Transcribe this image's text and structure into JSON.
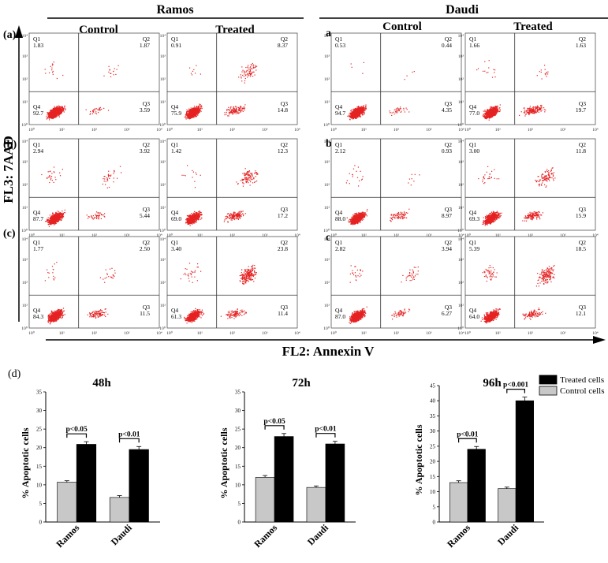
{
  "headers": {
    "ramos": "Ramos",
    "daudi": "Daudi",
    "control": "Control",
    "treated": "Treated"
  },
  "axes": {
    "y_label": "FL3: 7AAD",
    "x_label": "FL2: Annexin V"
  },
  "row_labels": {
    "left": [
      "(a)",
      "(b)",
      "(c)"
    ],
    "right": [
      "a",
      "b",
      "c"
    ],
    "panel_d": "(d)"
  },
  "scatter_panels": [
    {
      "cell_line": "Ramos",
      "condition": "Control",
      "row": "a",
      "Q1": "1.83",
      "Q2": "1.87",
      "Q3": "3.59",
      "Q4": "92.7"
    },
    {
      "cell_line": "Ramos",
      "condition": "Treated",
      "row": "a",
      "Q1": "0.91",
      "Q2": "8.37",
      "Q3": "14.8",
      "Q4": "75.9"
    },
    {
      "cell_line": "Daudi",
      "condition": "Control",
      "row": "a",
      "Q1": "0.53",
      "Q2": "0.44",
      "Q3": "4.35",
      "Q4": "94.7"
    },
    {
      "cell_line": "Daudi",
      "condition": "Treated",
      "row": "a",
      "Q1": "1.66",
      "Q2": "1.63",
      "Q3": "19.7",
      "Q4": "77.0"
    },
    {
      "cell_line": "Ramos",
      "condition": "Control",
      "row": "b",
      "Q1": "2.94",
      "Q2": "3.92",
      "Q3": "5.44",
      "Q4": "87.7"
    },
    {
      "cell_line": "Ramos",
      "condition": "Treated",
      "row": "b",
      "Q1": "1.42",
      "Q2": "12.3",
      "Q3": "17.2",
      "Q4": "69.0"
    },
    {
      "cell_line": "Daudi",
      "condition": "Control",
      "row": "b",
      "Q1": "2.12",
      "Q2": "0.93",
      "Q3": "8.97",
      "Q4": "88.0"
    },
    {
      "cell_line": "Daudi",
      "condition": "Treated",
      "row": "b",
      "Q1": "3.00",
      "Q2": "11.8",
      "Q3": "15.9",
      "Q4": "69.3"
    },
    {
      "cell_line": "Ramos",
      "condition": "Control",
      "row": "c",
      "Q1": "1.77",
      "Q2": "2.50",
      "Q3": "11.5",
      "Q4": "84.3"
    },
    {
      "cell_line": "Ramos",
      "condition": "Treated",
      "row": "c",
      "Q1": "3.40",
      "Q2": "23.8",
      "Q3": "11.4",
      "Q4": "61.3"
    },
    {
      "cell_line": "Daudi",
      "condition": "Control",
      "row": "c",
      "Q1": "2.82",
      "Q2": "3.94",
      "Q3": "6.27",
      "Q4": "87.0"
    },
    {
      "cell_line": "Daudi",
      "condition": "Treated",
      "row": "c",
      "Q1": "5.39",
      "Q2": "18.5",
      "Q3": "12.1",
      "Q4": "64.0"
    }
  ],
  "log_ticks": [
    "10⁰",
    "10¹",
    "10²",
    "10³",
    "10⁴"
  ],
  "colors": {
    "dots": "#e52222",
    "treated_bar": "#000000",
    "control_bar": "#c8c8c8"
  },
  "legend": {
    "treated": "Treated cells",
    "control": "Control cells",
    "placement": "top-right"
  },
  "chart_data": [
    {
      "type": "bar",
      "title": "48h",
      "ylabel": "% Apoptotic cells",
      "categories": [
        "Ramos",
        "Daudi"
      ],
      "ylim": [
        0,
        35
      ],
      "yticks": [
        0,
        5,
        10,
        15,
        20,
        25,
        30,
        35
      ],
      "series": [
        {
          "name": "Control cells",
          "values": [
            10.7,
            6.6
          ],
          "errors": [
            0.4,
            0.5
          ]
        },
        {
          "name": "Treated cells",
          "values": [
            20.9,
            19.5
          ],
          "errors": [
            0.7,
            0.8
          ]
        }
      ],
      "annotations": [
        "p<0.05",
        "p<0.01"
      ]
    },
    {
      "type": "bar",
      "title": "72h",
      "ylabel": "% Apoptotic cells",
      "categories": [
        "Ramos",
        "Daudi"
      ],
      "ylim": [
        0,
        35
      ],
      "yticks": [
        0,
        5,
        10,
        15,
        20,
        25,
        30,
        35
      ],
      "series": [
        {
          "name": "Control cells",
          "values": [
            12.0,
            9.3
          ],
          "errors": [
            0.5,
            0.4
          ]
        },
        {
          "name": "Treated cells",
          "values": [
            23.0,
            21.0
          ],
          "errors": [
            0.8,
            0.7
          ]
        }
      ],
      "annotations": [
        "p<0.05",
        "p<0.01"
      ]
    },
    {
      "type": "bar",
      "title": "96h",
      "ylabel": "% Apoptotic cells",
      "categories": [
        "Ramos",
        "Daudi"
      ],
      "ylim": [
        0,
        45
      ],
      "yticks": [
        0,
        5,
        10,
        15,
        20,
        25,
        30,
        35,
        40,
        45
      ],
      "series": [
        {
          "name": "Control cells",
          "values": [
            13.0,
            11.0
          ],
          "errors": [
            0.6,
            0.5
          ]
        },
        {
          "name": "Treated cells",
          "values": [
            24.0,
            40.0
          ],
          "errors": [
            0.9,
            1.2
          ]
        }
      ],
      "annotations": [
        "p<0.01",
        "p<0.001"
      ]
    }
  ]
}
